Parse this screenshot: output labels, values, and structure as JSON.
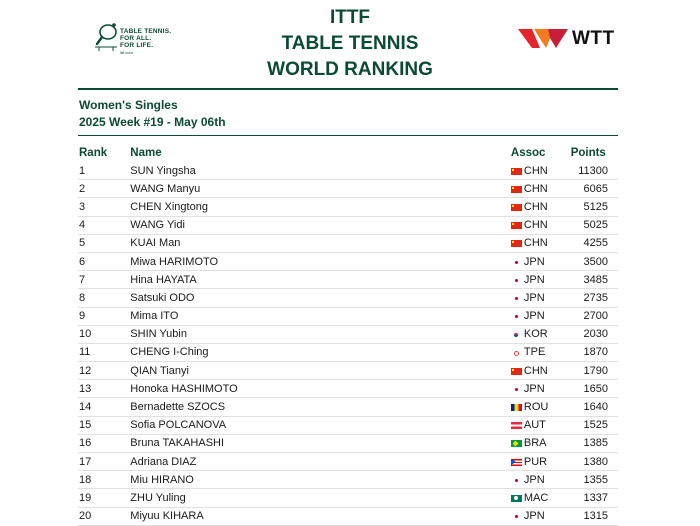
{
  "header": {
    "logo_lines": [
      "TABLE TENNIS.",
      "FOR ALL.",
      "FOR LIFE."
    ],
    "logo_url": "ittf.com",
    "title_lines": [
      "ITTF",
      "TABLE TENNIS",
      "WORLD RANKING"
    ],
    "wtt_label": "WTT"
  },
  "subtitle": {
    "category": "Women's Singles",
    "week": "2025 Week #19 - May 06th"
  },
  "table": {
    "columns": {
      "rank": "Rank",
      "name": "Name",
      "assoc": "Assoc",
      "points": "Points"
    },
    "rows": [
      {
        "rank": "1",
        "name": "SUN Yingsha",
        "assoc": "CHN",
        "flag": "chn",
        "points": "11300"
      },
      {
        "rank": "2",
        "name": "WANG Manyu",
        "assoc": "CHN",
        "flag": "chn",
        "points": "6065"
      },
      {
        "rank": "3",
        "name": "CHEN Xingtong",
        "assoc": "CHN",
        "flag": "chn",
        "points": "5125"
      },
      {
        "rank": "4",
        "name": "WANG Yidi",
        "assoc": "CHN",
        "flag": "chn",
        "points": "5025"
      },
      {
        "rank": "5",
        "name": "KUAI Man",
        "assoc": "CHN",
        "flag": "chn",
        "points": "4255"
      },
      {
        "rank": "6",
        "name": "Miwa HARIMOTO",
        "assoc": "JPN",
        "flag": "jpn",
        "points": "3500"
      },
      {
        "rank": "7",
        "name": "Hina HAYATA",
        "assoc": "JPN",
        "flag": "jpn",
        "points": "3485"
      },
      {
        "rank": "8",
        "name": "Satsuki ODO",
        "assoc": "JPN",
        "flag": "jpn",
        "points": "2735"
      },
      {
        "rank": "9",
        "name": "Mima ITO",
        "assoc": "JPN",
        "flag": "jpn",
        "points": "2700"
      },
      {
        "rank": "10",
        "name": "SHIN Yubin",
        "assoc": "KOR",
        "flag": "kor",
        "points": "2030"
      },
      {
        "rank": "11",
        "name": "CHENG I-Ching",
        "assoc": "TPE",
        "flag": "tpe",
        "points": "1870"
      },
      {
        "rank": "12",
        "name": "QIAN Tianyi",
        "assoc": "CHN",
        "flag": "chn",
        "points": "1790"
      },
      {
        "rank": "13",
        "name": "Honoka HASHIMOTO",
        "assoc": "JPN",
        "flag": "jpn",
        "points": "1650"
      },
      {
        "rank": "14",
        "name": "Bernadette SZOCS",
        "assoc": "ROU",
        "flag": "rou",
        "points": "1640"
      },
      {
        "rank": "15",
        "name": "Sofia POLCANOVA",
        "assoc": "AUT",
        "flag": "aut",
        "points": "1525"
      },
      {
        "rank": "16",
        "name": "Bruna TAKAHASHI",
        "assoc": "BRA",
        "flag": "bra",
        "points": "1385"
      },
      {
        "rank": "17",
        "name": "Adriana DIAZ",
        "assoc": "PUR",
        "flag": "pur",
        "points": "1380"
      },
      {
        "rank": "18",
        "name": "Miu HIRANO",
        "assoc": "JPN",
        "flag": "jpn",
        "points": "1355"
      },
      {
        "rank": "19",
        "name": "ZHU Yuling",
        "assoc": "MAC",
        "flag": "mac",
        "points": "1337"
      },
      {
        "rank": "20",
        "name": "Miyuu KIHARA",
        "assoc": "JPN",
        "flag": "jpn",
        "points": "1315"
      }
    ]
  },
  "colors": {
    "brand_green": "#0b4a34",
    "wtt_red": "#e4262c",
    "wtt_orange": "#f47b20"
  }
}
